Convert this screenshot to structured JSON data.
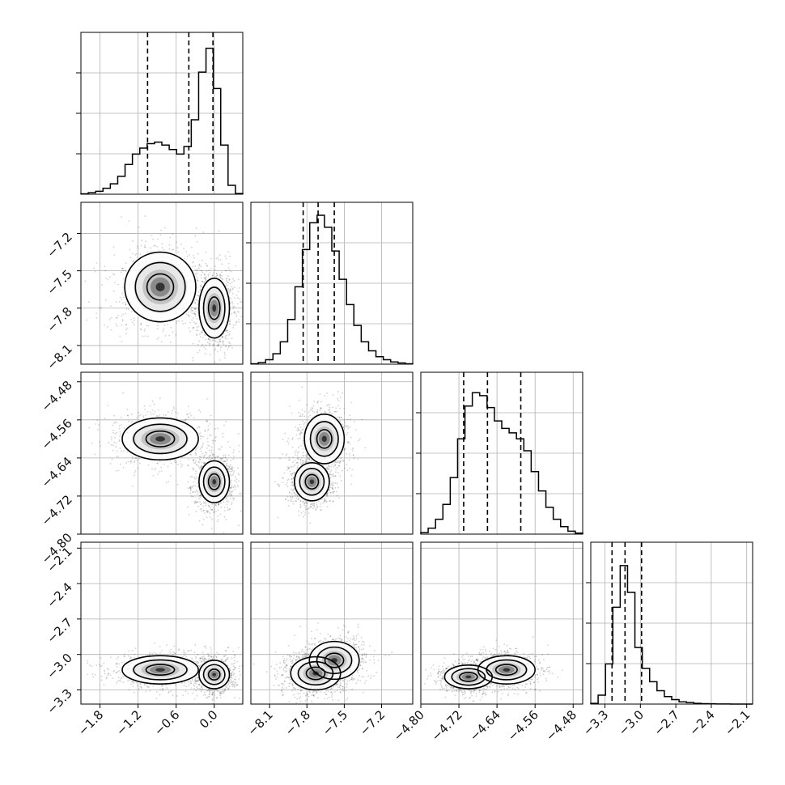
{
  "chart_data": {
    "type": "corner",
    "parameters": [
      {
        "label": "",
        "range": [
          -2.1,
          0.45
        ],
        "ticks": [
          -1.8,
          -1.2,
          -0.6,
          0.0
        ],
        "tick_labels": [
          "−1.8",
          "−1.2",
          "−0.6",
          "0.0"
        ],
        "quantiles": [
          -1.05,
          -0.4,
          -0.02
        ]
      },
      {
        "label": "",
        "range": [
          -8.25,
          -6.95
        ],
        "ticks": [
          -8.1,
          -7.8,
          -7.5,
          -7.2
        ],
        "tick_labels": [
          "−8.1",
          "−7.8",
          "−7.5",
          "−7.2"
        ],
        "quantiles": [
          -7.83,
          -7.71,
          -7.58
        ]
      },
      {
        "label": "",
        "range": [
          -4.8,
          -4.46
        ],
        "ticks": [
          -4.8,
          -4.72,
          -4.64,
          -4.56,
          -4.48
        ],
        "tick_labels": [
          "−4.80",
          "−4.72",
          "−4.64",
          "−4.56",
          "−4.48"
        ],
        "quantiles": [
          -4.71,
          -4.66,
          -4.59
        ]
      },
      {
        "label": "",
        "range": [
          -3.42,
          -2.05
        ],
        "ticks": [
          -3.3,
          -3.0,
          -2.7,
          -2.4,
          -2.1
        ],
        "tick_labels": [
          "−3.3",
          "−3.0",
          "−2.7",
          "−2.4",
          "−2.1"
        ],
        "quantiles": [
          -3.24,
          -3.13,
          -2.99
        ]
      }
    ],
    "histograms": [
      [
        0.003,
        0.01,
        0.02,
        0.04,
        0.07,
        0.12,
        0.2,
        0.27,
        0.31,
        0.34,
        0.35,
        0.33,
        0.3,
        0.27,
        0.32,
        0.5,
        0.82,
        0.98,
        0.71,
        0.33,
        0.06,
        0.005
      ],
      [
        0.003,
        0.01,
        0.03,
        0.07,
        0.15,
        0.3,
        0.52,
        0.77,
        0.95,
        1.0,
        0.92,
        0.76,
        0.57,
        0.4,
        0.26,
        0.15,
        0.09,
        0.05,
        0.03,
        0.015,
        0.008,
        0.003
      ],
      [
        0.01,
        0.04,
        0.1,
        0.2,
        0.38,
        0.64,
        0.86,
        0.95,
        0.93,
        0.85,
        0.76,
        0.71,
        0.68,
        0.64,
        0.56,
        0.42,
        0.29,
        0.18,
        0.1,
        0.05,
        0.02,
        0.007
      ],
      [
        0.005,
        0.06,
        0.27,
        0.65,
        0.93,
        0.75,
        0.38,
        0.24,
        0.15,
        0.09,
        0.05,
        0.03,
        0.015,
        0.01,
        0.005,
        0.003,
        0.002,
        0.001,
        0.0005,
        0.0002,
        0.0001,
        0.0
      ]
    ],
    "pairs": [
      {
        "row": 1,
        "col": 0,
        "modes": [
          {
            "mx": -0.85,
            "my": -7.63,
            "sx": 0.28,
            "sy": 0.14,
            "w": 0.45
          },
          {
            "mx": 0.0,
            "my": -7.8,
            "sx": 0.12,
            "sy": 0.12,
            "w": 0.55
          }
        ]
      },
      {
        "row": 2,
        "col": 0,
        "modes": [
          {
            "mx": -0.85,
            "my": -4.6,
            "sx": 0.3,
            "sy": 0.022,
            "w": 0.45
          },
          {
            "mx": 0.0,
            "my": -4.69,
            "sx": 0.12,
            "sy": 0.022,
            "w": 0.55
          }
        ]
      },
      {
        "row": 2,
        "col": 1,
        "modes": [
          {
            "mx": -7.76,
            "my": -4.69,
            "sx": 0.07,
            "sy": 0.02,
            "w": 0.55
          },
          {
            "mx": -7.66,
            "my": -4.6,
            "sx": 0.08,
            "sy": 0.026,
            "w": 0.45
          }
        ]
      },
      {
        "row": 3,
        "col": 0,
        "modes": [
          {
            "mx": -0.85,
            "my": -3.13,
            "sx": 0.3,
            "sy": 0.06,
            "w": 0.45
          },
          {
            "mx": 0.0,
            "my": -3.17,
            "sx": 0.12,
            "sy": 0.06,
            "w": 0.55
          }
        ]
      },
      {
        "row": 3,
        "col": 1,
        "modes": [
          {
            "mx": -7.73,
            "my": -3.16,
            "sx": 0.1,
            "sy": 0.07,
            "w": 0.6
          },
          {
            "mx": -7.58,
            "my": -3.05,
            "sx": 0.1,
            "sy": 0.08,
            "w": 0.4
          }
        ]
      },
      {
        "row": 3,
        "col": 2,
        "modes": [
          {
            "mx": -4.7,
            "my": -3.19,
            "sx": 0.025,
            "sy": 0.05,
            "w": 0.55
          },
          {
            "mx": -4.62,
            "my": -3.13,
            "sx": 0.03,
            "sy": 0.06,
            "w": 0.45
          }
        ]
      }
    ],
    "grid": true,
    "legend": "none"
  }
}
